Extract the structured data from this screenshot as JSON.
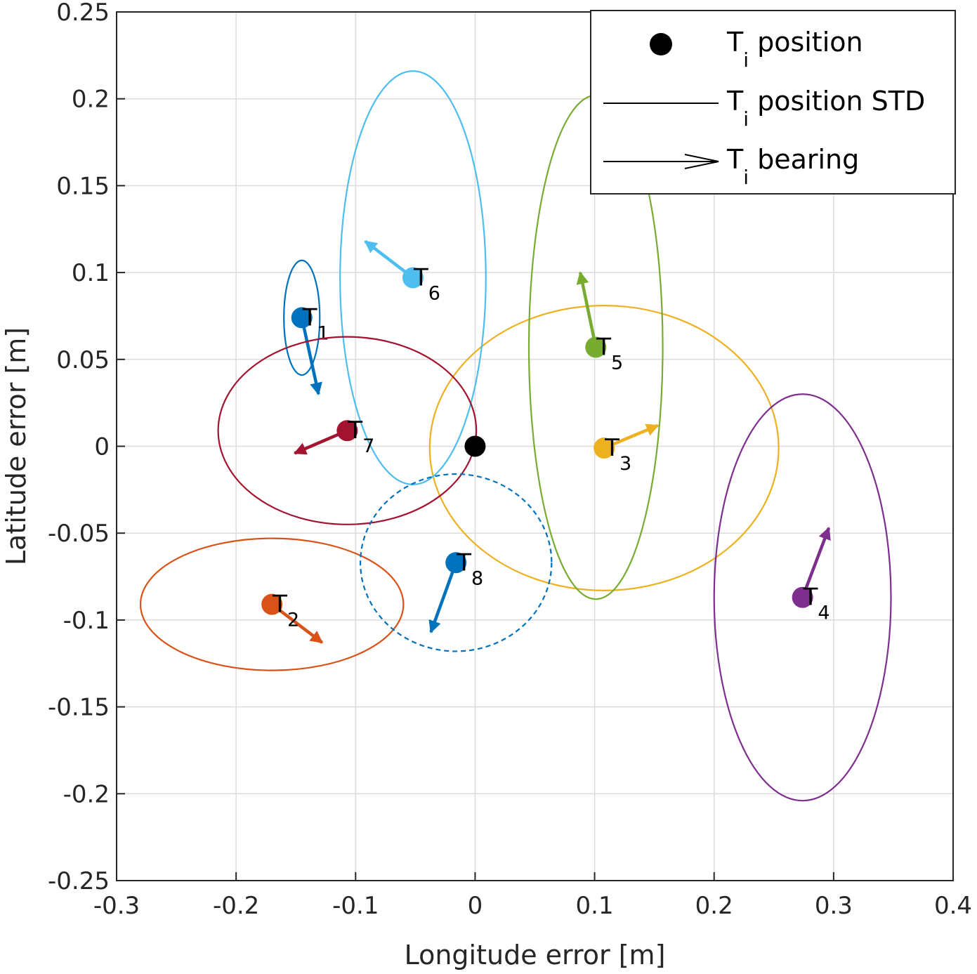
{
  "chart_data": {
    "type": "scatter",
    "xlabel": "Longitude error [m]",
    "ylabel": "Latitude error [m]",
    "xlim": [
      -0.3,
      0.4
    ],
    "ylim": [
      -0.25,
      0.25
    ],
    "grid": true,
    "xticks": [
      -0.3,
      -0.2,
      -0.1,
      0,
      0.1,
      0.2,
      0.3,
      0.4
    ],
    "yticks": [
      -0.25,
      -0.2,
      -0.15,
      -0.1,
      -0.05,
      0,
      0.05,
      0.1,
      0.15,
      0.2,
      0.25
    ],
    "xtick_labels": [
      "-0.3",
      "-0.2",
      "-0.1",
      "0",
      "0.1",
      "0.2",
      "0.3",
      "0.4"
    ],
    "ytick_labels": [
      "-0.25",
      "-0.2",
      "-0.15",
      "-0.1",
      "-0.05",
      "0",
      "0.05",
      "0.1",
      "0.15",
      "0.2",
      "0.25"
    ],
    "reference_point": {
      "name": "origin",
      "x": 0,
      "y": 0,
      "color": "#000000"
    },
    "legend": {
      "placement": "top-right",
      "entries": [
        {
          "kind": "marker",
          "label": "position",
          "prefix": "T",
          "sub": "i"
        },
        {
          "kind": "line",
          "label": "position STD",
          "prefix": "T",
          "sub": "i"
        },
        {
          "kind": "arrow",
          "label": "bearing",
          "prefix": "T",
          "sub": "i"
        }
      ]
    },
    "series": [
      {
        "name": "T1",
        "label": "T",
        "sub": "1",
        "color": "#0072BD",
        "x": -0.145,
        "y": 0.074,
        "std_x": 0.015,
        "std_y": 0.033,
        "bearing_end": [
          -0.131,
          0.03
        ],
        "dashed": false
      },
      {
        "name": "T2",
        "label": "T",
        "sub": "2",
        "color": "#D95319",
        "x": -0.17,
        "y": -0.091,
        "std_x": 0.11,
        "std_y": 0.038,
        "bearing_end": [
          -0.128,
          -0.113
        ],
        "dashed": false
      },
      {
        "name": "T3",
        "label": "T",
        "sub": "3",
        "color": "#EDB120",
        "x": 0.108,
        "y": -0.001,
        "std_x": 0.146,
        "std_y": 0.082,
        "bearing_end": [
          0.153,
          0.012
        ],
        "dashed": false
      },
      {
        "name": "T4",
        "label": "T",
        "sub": "4",
        "color": "#7E2F8E",
        "x": 0.274,
        "y": -0.087,
        "std_x": 0.074,
        "std_y": 0.117,
        "bearing_end": [
          0.296,
          -0.047
        ],
        "dashed": false
      },
      {
        "name": "T5",
        "label": "T",
        "sub": "5",
        "color": "#77AC30",
        "x": 0.101,
        "y": 0.057,
        "std_x": 0.056,
        "std_y": 0.145,
        "bearing_end": [
          0.088,
          0.1
        ],
        "dashed": false
      },
      {
        "name": "T6",
        "label": "T",
        "sub": "6",
        "color": "#4DBEEE",
        "x": -0.052,
        "y": 0.097,
        "std_x": 0.061,
        "std_y": 0.119,
        "bearing_end": [
          -0.092,
          0.118
        ],
        "dashed": false
      },
      {
        "name": "T7",
        "label": "T",
        "sub": "7",
        "color": "#A2142F",
        "x": -0.107,
        "y": 0.009,
        "std_x": 0.108,
        "std_y": 0.054,
        "bearing_end": [
          -0.151,
          -0.004
        ],
        "dashed": false
      },
      {
        "name": "T8",
        "label": "T",
        "sub": "8",
        "color": "#0072BD",
        "x": -0.016,
        "y": -0.067,
        "std_x": 0.08,
        "std_y": 0.051,
        "bearing_end": [
          -0.037,
          -0.107
        ],
        "dashed": true
      }
    ]
  }
}
